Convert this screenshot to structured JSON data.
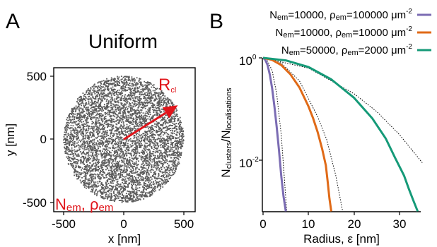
{
  "chart_data": [
    {
      "panel": "A",
      "type": "scatter",
      "title": "Uniform",
      "xlabel": "x [nm]",
      "ylabel": "y [nm]",
      "xlim": [
        -600,
        600
      ],
      "ylim": [
        -600,
        600
      ],
      "xticks": [
        "-500",
        "0",
        "500"
      ],
      "yticks": [
        "500",
        "0",
        "-500"
      ],
      "disk_radius": 500,
      "point_color": "#5a5a5a",
      "arrow": {
        "from": [
          0,
          0
        ],
        "to": [
          450,
          270
        ],
        "color": "#e0151b"
      },
      "annotations": {
        "rcl": {
          "main": "R",
          "sub": "cl"
        },
        "nem": {
          "n": "N",
          "n_sub": "em",
          "sep": ", ",
          "rho": "ρ",
          "rho_sub": "em"
        }
      }
    },
    {
      "panel": "B",
      "type": "line",
      "xlabel": "Radius, ε [nm]",
      "ylabel": {
        "n1": "N",
        "s1": "clusters",
        "slash": "/",
        "n2": "N",
        "s2": "localisations"
      },
      "xlim": [
        0,
        35
      ],
      "ylim_log10": [
        -3.0,
        0
      ],
      "xticks": [
        "0",
        "10",
        "20",
        "30"
      ],
      "ytick_1": {
        "base": "10",
        "exp": "0"
      },
      "ytick_2": {
        "base": "10",
        "exp": "-2"
      },
      "log_y": true,
      "series": [
        {
          "color": "#7b6cb3",
          "label": {
            "n": "N",
            "n_sub": "em",
            "n_val": "=10000, ",
            "rho": "ρ",
            "rho_sub": "em",
            "rho_val": "=100000 μm",
            "exp": "-2"
          },
          "x": [
            0,
            0.5,
            1,
            1.5,
            2,
            2.5,
            3,
            3.5,
            4,
            4.5,
            5
          ],
          "log10_y": [
            0,
            -0.04,
            -0.14,
            -0.33,
            -0.6,
            -0.95,
            -1.35,
            -1.8,
            -2.3,
            -2.7,
            -3.0
          ]
        },
        {
          "color": "#e06a17",
          "label": {
            "n": "N",
            "n_sub": "em",
            "n_val": "=10000, ",
            "rho": "ρ",
            "rho_sub": "em",
            "rho_val": "=10000 μm",
            "exp": "-2"
          },
          "x": [
            0,
            2,
            4,
            6,
            8,
            10,
            11,
            12,
            13,
            13.8,
            14.2,
            14.6,
            15
          ],
          "log10_y": [
            0,
            -0.04,
            -0.14,
            -0.32,
            -0.58,
            -0.95,
            -1.18,
            -1.45,
            -1.78,
            -2.1,
            -2.42,
            -2.75,
            -3.0
          ]
        },
        {
          "color": "#159a78",
          "label": {
            "n": "N",
            "n_sub": "em",
            "n_val": "=50000, ",
            "rho": "ρ",
            "rho_sub": "em",
            "rho_val": "=2000 μm",
            "exp": "-2"
          },
          "x": [
            0,
            5,
            10,
            15,
            20,
            24,
            27,
            29,
            31,
            32,
            33,
            34
          ],
          "log10_y": [
            0,
            -0.05,
            -0.18,
            -0.42,
            -0.78,
            -1.18,
            -1.58,
            -1.95,
            -2.3,
            -2.55,
            -2.78,
            -3.0
          ]
        }
      ],
      "reference_curves": [
        {
          "style": "dotted",
          "x": [
            0,
            1,
            2,
            3,
            4,
            5,
            5.2
          ],
          "log10_y": [
            0,
            -0.06,
            -0.25,
            -0.7,
            -1.5,
            -2.75,
            -3.0
          ]
        },
        {
          "style": "dotted",
          "x": [
            0,
            4,
            8,
            12,
            14,
            16,
            17.5
          ],
          "log10_y": [
            0,
            -0.1,
            -0.45,
            -1.15,
            -1.6,
            -2.3,
            -3.0
          ]
        },
        {
          "style": "dotted",
          "x": [
            0,
            10,
            20,
            25,
            30,
            35
          ],
          "log10_y": [
            0,
            -0.2,
            -0.7,
            -1.05,
            -1.5,
            -2.05
          ]
        }
      ]
    }
  ]
}
